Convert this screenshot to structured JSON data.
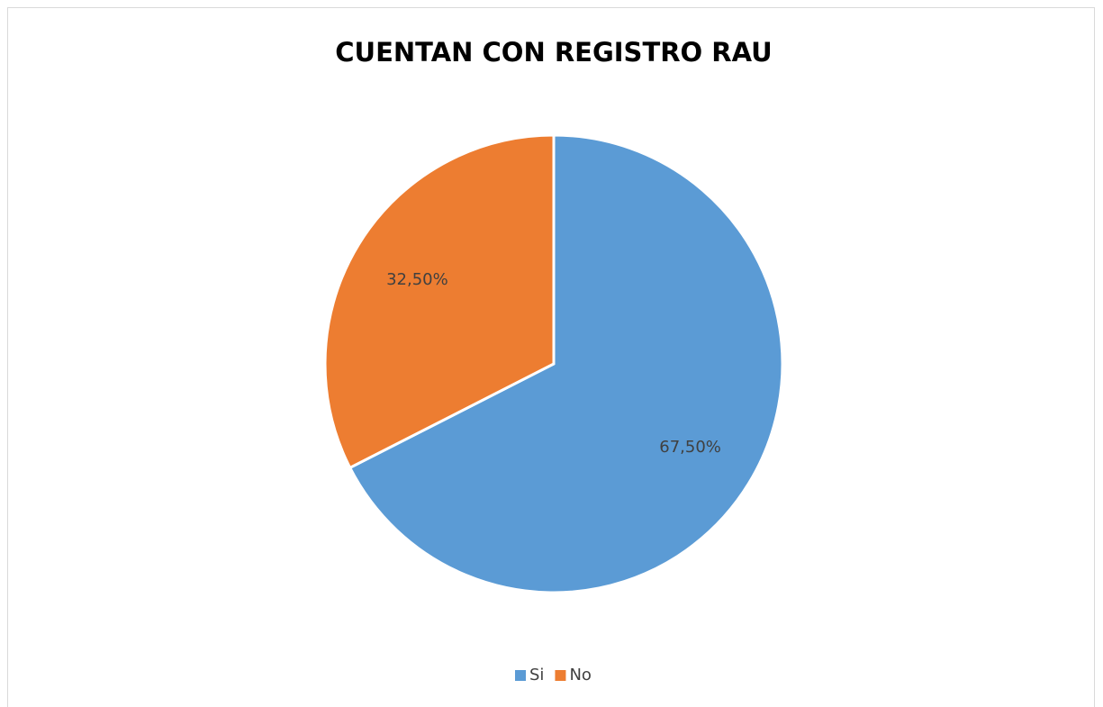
{
  "chart_data": {
    "type": "pie",
    "title": "CUENTAN CON REGISTRO RAU",
    "categories": [
      "Si",
      "No"
    ],
    "values": [
      67.5,
      32.5
    ],
    "value_labels": [
      "67,50%",
      "32,50%"
    ],
    "colors": [
      "#5b9bd5",
      "#ed7d31"
    ],
    "legend": "bottom"
  }
}
